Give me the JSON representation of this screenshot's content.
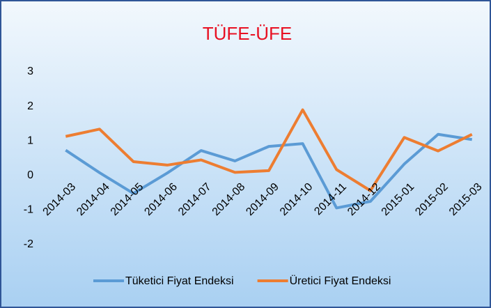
{
  "chart_data": {
    "type": "line",
    "title": "TÜFE-ÜFE",
    "categories": [
      "2014-03",
      "2014-04",
      "2014-05",
      "2014-06",
      "2014-07",
      "2014-08",
      "2014-09",
      "2014-10",
      "2014-11",
      "2014-12",
      "2015-01",
      "2015-02",
      "2015-03"
    ],
    "series": [
      {
        "name": "Tüketici Fiyat Endeksi",
        "color": "#5b9bd5",
        "values": [
          0.73,
          0.08,
          -0.52,
          0.07,
          0.72,
          0.42,
          0.84,
          0.92,
          -0.94,
          -0.75,
          0.33,
          1.19,
          1.04
        ]
      },
      {
        "name": "Üretici Fiyat Endeksi",
        "color": "#ed7d31",
        "values": [
          1.13,
          1.34,
          0.4,
          0.3,
          0.45,
          0.09,
          0.14,
          1.9,
          0.17,
          -0.44,
          1.1,
          0.71,
          1.19
        ]
      }
    ],
    "ylim": [
      -2,
      3
    ],
    "yticks": [
      -2,
      -1,
      0,
      1,
      2,
      3
    ],
    "grid": false,
    "legend": "bottom"
  }
}
